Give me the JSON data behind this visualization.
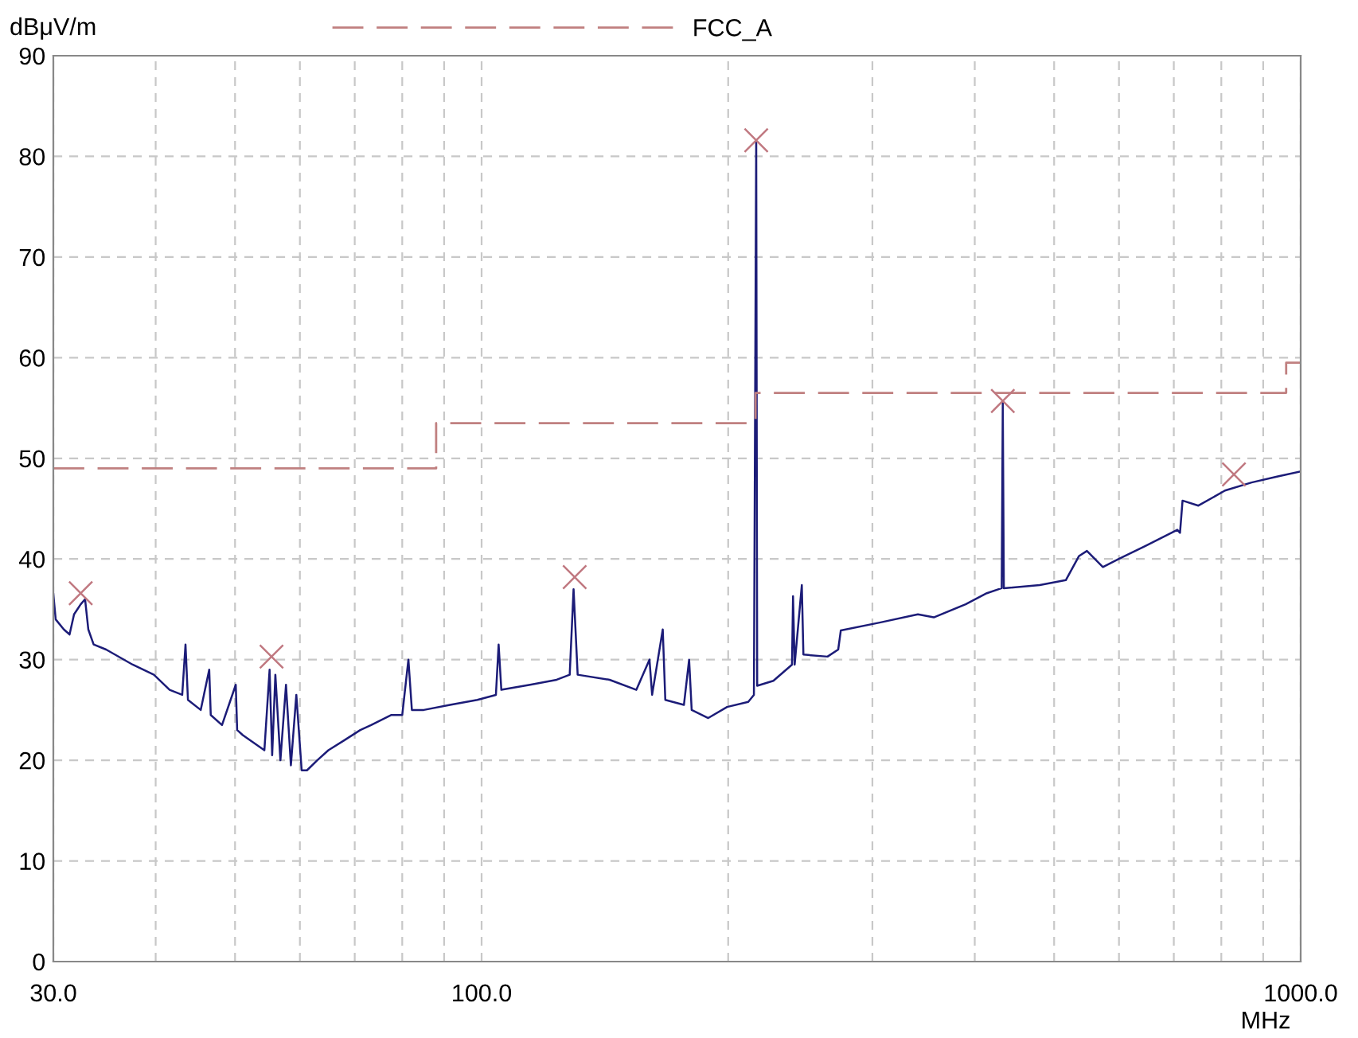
{
  "chart_data": {
    "type": "line",
    "xlabel": "MHz",
    "ylabel": "dBμV/m",
    "log": "x",
    "xlim": [
      30,
      1000
    ],
    "ylim": [
      0,
      90
    ],
    "xticks": [
      {
        "value": 30,
        "label": "30.0"
      },
      {
        "value": 40,
        "label": null
      },
      {
        "value": 50,
        "label": null
      },
      {
        "value": 60,
        "label": null
      },
      {
        "value": 70,
        "label": null
      },
      {
        "value": 80,
        "label": null
      },
      {
        "value": 90,
        "label": null
      },
      {
        "value": 100,
        "label": "100.0"
      },
      {
        "value": 200,
        "label": null
      },
      {
        "value": 300,
        "label": null
      },
      {
        "value": 400,
        "label": null
      },
      {
        "value": 500,
        "label": null
      },
      {
        "value": 600,
        "label": null
      },
      {
        "value": 700,
        "label": null
      },
      {
        "value": 800,
        "label": null
      },
      {
        "value": 900,
        "label": null
      },
      {
        "value": 1000,
        "label": "1000.0"
      }
    ],
    "yticks": [
      0,
      10,
      20,
      30,
      40,
      50,
      60,
      70,
      80,
      90
    ],
    "grid": true,
    "legend": "top",
    "series": [
      {
        "color": "#1c1c78",
        "x": [
          30.0,
          30.2,
          30.9,
          31.4,
          31.8,
          32.4,
          32.8,
          33.1,
          33.6,
          34.8,
          37.5,
          39.8,
          41.6,
          43.1,
          43.5,
          43.8,
          45.4,
          46.5,
          46.7,
          48.2,
          50.1,
          50.3,
          51.1,
          54.3,
          55.1,
          55.5,
          56.0,
          56.8,
          57.7,
          58.5,
          59.4,
          60.3,
          61.2,
          63.0,
          65.0,
          68.0,
          71.1,
          73.3,
          77.6,
          80.0,
          81.4,
          82.2,
          85.0,
          91.5,
          98.8,
          104.1,
          104.9,
          105.7,
          114.6,
          123.5,
          128.1,
          129.5,
          131.0,
          143.3,
          154.5,
          160.3,
          161.5,
          166.4,
          167.6,
          176.6,
          179.2,
          180.5,
          189.1,
          199.4,
          211.6,
          215.0,
          216.4,
          217.0,
          227.1,
          239.3,
          240.0,
          241.1,
          246.0,
          247.1,
          264.4,
          272.5,
          274.5,
          307.0,
          340.9,
          356.5,
          389.9,
          413.8,
          431.5,
          432.8,
          434.1,
          480.2,
          516.7,
          536.3,
          548.3,
          573.5,
          599.7,
          646.3,
          706.9,
          712.3,
          717.4,
          750.1,
          808.3,
          871.1,
          937.8,
          1000
        ],
        "values": [
          36.5,
          34,
          33,
          32.5,
          34.5,
          35.5,
          36,
          33,
          31.5,
          31,
          29.5,
          28.5,
          27,
          26.5,
          31.5,
          26,
          25,
          29,
          24.5,
          23.5,
          27.5,
          23,
          22.5,
          21,
          29,
          20.5,
          28.5,
          20,
          27.5,
          19.5,
          26.5,
          19,
          19,
          20,
          21,
          22,
          23,
          23.5,
          24.5,
          24.5,
          30,
          25,
          25,
          25.5,
          26,
          26.5,
          31.5,
          27,
          27.5,
          28,
          28.5,
          37,
          28.5,
          28,
          27,
          30,
          26.5,
          33,
          26,
          25.5,
          30,
          25,
          24.2,
          25.3,
          25.8,
          26.5,
          81.5,
          27.4,
          27.9,
          29.5,
          36.3,
          29.5,
          37.4,
          30.5,
          30.3,
          31,
          32.9,
          33.7,
          34.5,
          34.2,
          35.5,
          36.6,
          37.1,
          55.5,
          37.1,
          37.4,
          37.9,
          40.3,
          40.8,
          39.2,
          40,
          41.3,
          42.9,
          42.6,
          45.8,
          45.3,
          46.8,
          47.6,
          48.2,
          48.7
        ]
      },
      {
        "type": "scatter",
        "color": "#c07880",
        "marker": "cross",
        "x": [
          32.4,
          55.4,
          129.9,
          216.4,
          432.8,
          828.9
        ],
        "values": [
          36.6,
          30.3,
          38.2,
          81.6,
          55.7,
          48.4
        ]
      },
      {
        "type": "step",
        "name": "FCC_A",
        "color": "#c08080",
        "line_style": "dashed",
        "x": [
          30,
          88,
          216,
          960,
          1000
        ],
        "values": [
          49,
          53.5,
          56.5,
          59.5,
          59.5
        ]
      }
    ]
  }
}
